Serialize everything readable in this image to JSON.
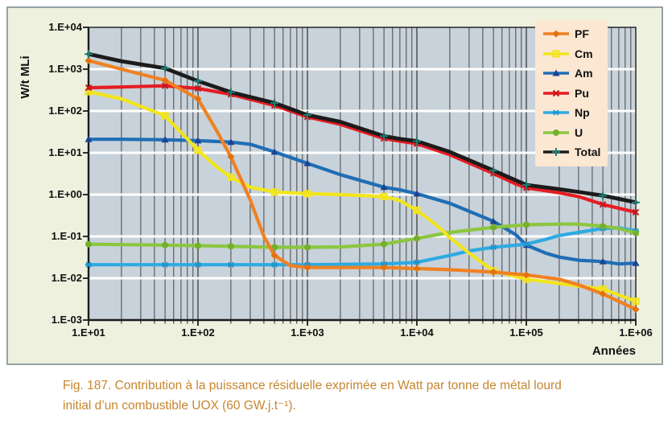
{
  "caption": {
    "line1": "Fig. 187. Contribution à la puissance résiduelle exprimée en Watt par tonne de métal lourd",
    "line2": "initial d’un combustible UOX (60 GW.j.t⁻¹)."
  },
  "colors": {
    "page_bg": "#FFFFFF",
    "figure_bg": "#EDF1DE",
    "figure_border": "#96A1A8",
    "plot_bg": "#C8D2DA",
    "grid_vertical": "#474747",
    "grid_horizontal": "#FFFFFF",
    "axis": "#1A1A1A",
    "legend_bg": "#FBE7D2",
    "caption_text": "#C6862F",
    "tick_text": "#111111"
  },
  "chart_data": {
    "type": "line",
    "title": "",
    "xlabel": "Années",
    "ylabel": "W/t MLi",
    "x_scale": "log",
    "y_scale": "log",
    "xlim": [
      10,
      1000000
    ],
    "ylim": [
      0.001,
      10000
    ],
    "grid": {
      "vertical_minor_log": true,
      "horizontal_decades_white": true
    },
    "legend_position": "top-right",
    "x_ticks": [
      {
        "label": "1.E+01",
        "value": 10
      },
      {
        "label": "1.E+02",
        "value": 100
      },
      {
        "label": "1.E+03",
        "value": 1000
      },
      {
        "label": "1.E+04",
        "value": 10000
      },
      {
        "label": "1.E+05",
        "value": 100000
      },
      {
        "label": "1.E+06",
        "value": 1000000
      }
    ],
    "y_ticks": [
      {
        "label": "1.E+04",
        "value": 10000
      },
      {
        "label": "1.E+03",
        "value": 1000
      },
      {
        "label": "1.E+02",
        "value": 100
      },
      {
        "label": "1.E+01",
        "value": 10
      },
      {
        "label": "1.E+00",
        "value": 1
      },
      {
        "label": "1.E-01",
        "value": 0.1
      },
      {
        "label": "1.E-02",
        "value": 0.01
      },
      {
        "label": "1.E-03",
        "value": 0.001
      }
    ],
    "marker_xs": [
      10,
      50,
      100,
      200,
      500,
      1000,
      5000,
      10000,
      50000,
      100000,
      500000,
      1000000
    ],
    "draw_order": [
      "Am",
      "Np",
      "U",
      "Cm",
      "Pu",
      "PF",
      "Total"
    ],
    "series": [
      {
        "name": "PF",
        "color": "#F08122",
        "marker": "diamond",
        "marker_color": "#E2720D",
        "points": [
          [
            10,
            1600
          ],
          [
            20,
            1000
          ],
          [
            50,
            540
          ],
          [
            100,
            195
          ],
          [
            150,
            32
          ],
          [
            200,
            8
          ],
          [
            300,
            0.75
          ],
          [
            400,
            0.1
          ],
          [
            500,
            0.035
          ],
          [
            700,
            0.02
          ],
          [
            1000,
            0.018
          ],
          [
            2000,
            0.018
          ],
          [
            5000,
            0.018
          ],
          [
            10000,
            0.017
          ],
          [
            20000,
            0.016
          ],
          [
            50000,
            0.014
          ],
          [
            100000,
            0.012
          ],
          [
            200000,
            0.0095
          ],
          [
            300000,
            0.007
          ],
          [
            500000,
            0.0042
          ],
          [
            700000,
            0.0028
          ],
          [
            1000000,
            0.0018
          ]
        ]
      },
      {
        "name": "Cm",
        "color": "#F2E51C",
        "marker": "square",
        "marker_color": "#F2E51C",
        "points": [
          [
            10,
            290
          ],
          [
            20,
            195
          ],
          [
            50,
            77
          ],
          [
            100,
            11.5
          ],
          [
            150,
            4.5
          ],
          [
            200,
            2.6
          ],
          [
            300,
            1.5
          ],
          [
            500,
            1.15
          ],
          [
            1000,
            1.05
          ],
          [
            2000,
            1.0
          ],
          [
            5000,
            0.9
          ],
          [
            7000,
            0.72
          ],
          [
            10000,
            0.42
          ],
          [
            15000,
            0.19
          ],
          [
            20000,
            0.095
          ],
          [
            30000,
            0.04
          ],
          [
            50000,
            0.015
          ],
          [
            100000,
            0.0095
          ],
          [
            200000,
            0.0075
          ],
          [
            500000,
            0.0055
          ],
          [
            1000000,
            0.0028
          ]
        ]
      },
      {
        "name": "Am",
        "color": "#1F6EB5",
        "marker": "triangle",
        "marker_color": "#1B4390",
        "points": [
          [
            10,
            21
          ],
          [
            20,
            21
          ],
          [
            50,
            20.5
          ],
          [
            100,
            19.5
          ],
          [
            200,
            18
          ],
          [
            300,
            16
          ],
          [
            500,
            10.5
          ],
          [
            1000,
            5.6
          ],
          [
            2000,
            3.0
          ],
          [
            5000,
            1.5
          ],
          [
            7000,
            1.3
          ],
          [
            10000,
            1.05
          ],
          [
            20000,
            0.62
          ],
          [
            50000,
            0.23
          ],
          [
            80000,
            0.11
          ],
          [
            100000,
            0.062
          ],
          [
            150000,
            0.04
          ],
          [
            200000,
            0.032
          ],
          [
            300000,
            0.027
          ],
          [
            500000,
            0.025
          ],
          [
            700000,
            0.022
          ],
          [
            1000000,
            0.023
          ]
        ]
      },
      {
        "name": "Pu",
        "color": "#E51D23",
        "marker": "x",
        "marker_color": "#C4161B",
        "points": [
          [
            10,
            360
          ],
          [
            20,
            375
          ],
          [
            50,
            400
          ],
          [
            100,
            345
          ],
          [
            200,
            250
          ],
          [
            500,
            135
          ],
          [
            1000,
            72
          ],
          [
            2000,
            48
          ],
          [
            5000,
            22
          ],
          [
            7000,
            19
          ],
          [
            10000,
            16.5
          ],
          [
            20000,
            9
          ],
          [
            50000,
            3.2
          ],
          [
            80000,
            1.8
          ],
          [
            100000,
            1.45
          ],
          [
            200000,
            1.1
          ],
          [
            300000,
            0.9
          ],
          [
            500000,
            0.58
          ],
          [
            1000000,
            0.38
          ]
        ]
      },
      {
        "name": "Np",
        "color": "#2FAAE1",
        "marker": "star",
        "marker_color": "#1D96D2",
        "points": [
          [
            10,
            0.021
          ],
          [
            100,
            0.021
          ],
          [
            1000,
            0.021
          ],
          [
            5000,
            0.022
          ],
          [
            10000,
            0.024
          ],
          [
            20000,
            0.035
          ],
          [
            30000,
            0.045
          ],
          [
            50000,
            0.055
          ],
          [
            100000,
            0.065
          ],
          [
            150000,
            0.085
          ],
          [
            200000,
            0.105
          ],
          [
            300000,
            0.125
          ],
          [
            500000,
            0.155
          ],
          [
            700000,
            0.16
          ],
          [
            1000000,
            0.135
          ]
        ]
      },
      {
        "name": "U",
        "color": "#8CC63F",
        "marker": "circle",
        "marker_color": "#74B02C",
        "points": [
          [
            10,
            0.065
          ],
          [
            50,
            0.062
          ],
          [
            100,
            0.06
          ],
          [
            200,
            0.058
          ],
          [
            500,
            0.055
          ],
          [
            1000,
            0.055
          ],
          [
            2000,
            0.056
          ],
          [
            5000,
            0.065
          ],
          [
            10000,
            0.09
          ],
          [
            20000,
            0.125
          ],
          [
            50000,
            0.165
          ],
          [
            100000,
            0.19
          ],
          [
            200000,
            0.197
          ],
          [
            300000,
            0.197
          ],
          [
            500000,
            0.175
          ],
          [
            700000,
            0.155
          ],
          [
            1000000,
            0.12
          ]
        ]
      },
      {
        "name": "Total",
        "color": "#1C1C1C",
        "marker": "plus",
        "marker_color": "#1E7E74",
        "points": [
          [
            10,
            2300
          ],
          [
            20,
            1550
          ],
          [
            50,
            1050
          ],
          [
            100,
            520
          ],
          [
            200,
            280
          ],
          [
            500,
            155
          ],
          [
            1000,
            80
          ],
          [
            2000,
            55
          ],
          [
            5000,
            25
          ],
          [
            7000,
            21.5
          ],
          [
            10000,
            19
          ],
          [
            20000,
            10.5
          ],
          [
            50000,
            3.8
          ],
          [
            80000,
            2.2
          ],
          [
            100000,
            1.7
          ],
          [
            200000,
            1.35
          ],
          [
            300000,
            1.15
          ],
          [
            500000,
            0.95
          ],
          [
            1000000,
            0.65
          ]
        ]
      }
    ]
  }
}
